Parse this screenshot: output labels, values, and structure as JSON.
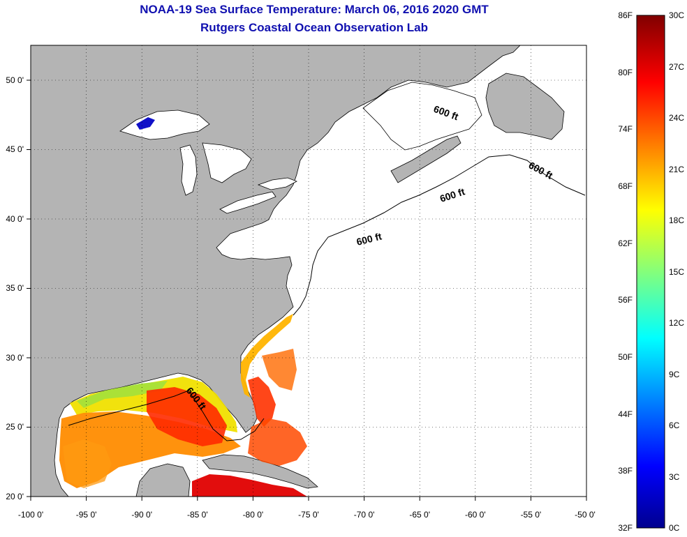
{
  "title_line1": "NOAA-19 Sea Surface Temperature:  March 06, 2016 2020 GMT",
  "title_line2": "Rutgers Coastal Ocean Observation Lab",
  "map": {
    "lon_range": [
      -100,
      -50
    ],
    "lat_range": [
      20,
      52.5
    ],
    "lon_ticks": [
      "-100 0'",
      "-95 0'",
      "-90 0'",
      "-85 0'",
      "-80 0'",
      "-75 0'",
      "-70 0'",
      "-65 0'",
      "-60 0'",
      "-55 0'",
      "-50 0'"
    ],
    "lat_ticks": [
      "20 0'",
      "25 0'",
      "30 0'",
      "35 0'",
      "40 0'",
      "45 0'",
      "50 0'"
    ],
    "grid": "dotted",
    "land_color": "#b4b4b4",
    "depth_contour_label": "600 ft",
    "depth_labels": [
      "600 ft",
      "600 ft",
      "600 ft",
      "600 ft",
      "600 ft"
    ]
  },
  "colorbar": {
    "fahrenheit_labels": [
      "86F",
      "80F",
      "74F",
      "68F",
      "62F",
      "56F",
      "50F",
      "44F",
      "38F",
      "32F"
    ],
    "celsius_labels": [
      "30C",
      "27C",
      "24C",
      "21C",
      "18C",
      "15C",
      "12C",
      "9C",
      "6C",
      "3C",
      "0C"
    ],
    "colormap": "jet",
    "colors": [
      "#00008f",
      "#0000ff",
      "#00ffff",
      "#ffff00",
      "#ff0000",
      "#800000"
    ]
  }
}
